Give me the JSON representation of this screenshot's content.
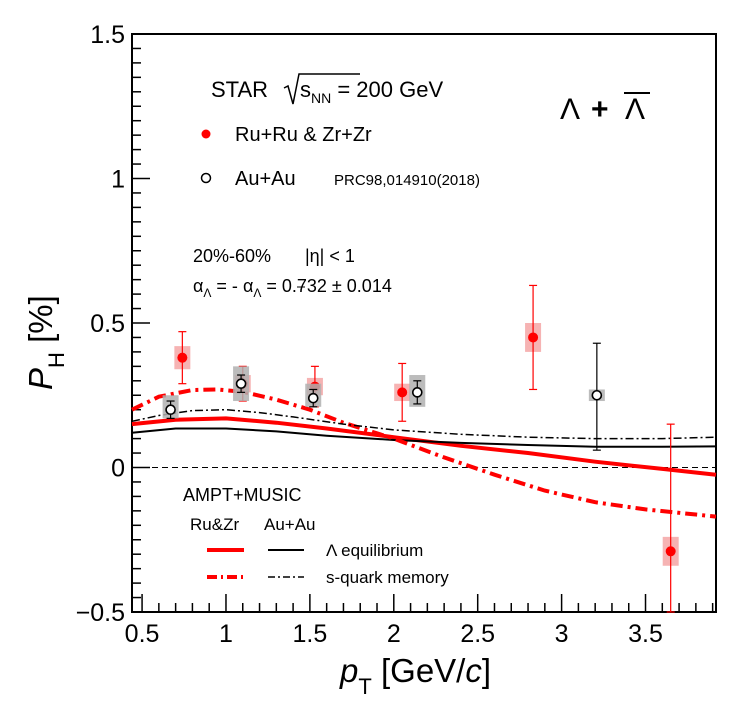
{
  "chart_data": {
    "type": "scatter",
    "title": "",
    "xlabel": {
      "main": "p",
      "sub": "T",
      "unit_open": " [GeV/",
      "unit_var": "c",
      "unit_close": "]"
    },
    "ylabel": {
      "main": "P",
      "sub": "H",
      "unit": " [%]"
    },
    "xlim": [
      0.44,
      3.92
    ],
    "ylim": [
      -0.5,
      1.5
    ],
    "x_ticks": [
      {
        "v": 0.5,
        "label": "0.5"
      },
      {
        "v": 1.0,
        "label": "1"
      },
      {
        "v": 1.5,
        "label": "1.5"
      },
      {
        "v": 2.0,
        "label": "2"
      },
      {
        "v": 2.5,
        "label": "2.5"
      },
      {
        "v": 3.0,
        "label": "3"
      },
      {
        "v": 3.5,
        "label": "3.5"
      }
    ],
    "y_ticks": [
      {
        "v": -0.5,
        "label": "−0.5"
      },
      {
        "v": 0.0,
        "label": "0"
      },
      {
        "v": 0.5,
        "label": "0.5"
      },
      {
        "v": 1.0,
        "label": "1"
      },
      {
        "v": 1.5,
        "label": "1.5"
      }
    ],
    "zero_line": true,
    "colors": {
      "red": "#ff0000",
      "black": "#000000",
      "red_sys": "#f4a6a6",
      "black_sys": "#b0b0b0"
    },
    "series": [
      {
        "name": "Ru+Ru & Zr+Zr",
        "marker": "filled-circle",
        "color": "#ff0000",
        "points": [
          {
            "x": 0.74,
            "y": 0.38,
            "stat_lo": 0.29,
            "stat_hi": 0.47,
            "sys_lo": 0.34,
            "sys_hi": 0.42
          },
          {
            "x": 1.1,
            "y": 0.29,
            "stat_lo": 0.23,
            "stat_hi": 0.35,
            "sys_lo": 0.26,
            "sys_hi": 0.32
          },
          {
            "x": 1.53,
            "y": 0.28,
            "stat_lo": 0.21,
            "stat_hi": 0.35,
            "sys_lo": 0.25,
            "sys_hi": 0.31
          },
          {
            "x": 2.05,
            "y": 0.26,
            "stat_lo": 0.16,
            "stat_hi": 0.36,
            "sys_lo": 0.23,
            "sys_hi": 0.29
          },
          {
            "x": 2.83,
            "y": 0.45,
            "stat_lo": 0.27,
            "stat_hi": 0.63,
            "sys_lo": 0.4,
            "sys_hi": 0.5
          },
          {
            "x": 3.65,
            "y": -0.29,
            "stat_lo": -0.5,
            "stat_hi": 0.15,
            "sys_lo": -0.34,
            "sys_hi": -0.24
          }
        ]
      },
      {
        "name": "Au+Au",
        "marker": "open-circle",
        "color": "#000000",
        "points": [
          {
            "x": 0.67,
            "y": 0.2,
            "stat_lo": 0.17,
            "stat_hi": 0.23,
            "sys_lo": 0.17,
            "sys_hi": 0.25
          },
          {
            "x": 1.09,
            "y": 0.29,
            "stat_lo": 0.26,
            "stat_hi": 0.32,
            "sys_lo": 0.23,
            "sys_hi": 0.35
          },
          {
            "x": 1.52,
            "y": 0.24,
            "stat_lo": 0.21,
            "stat_hi": 0.27,
            "sys_lo": 0.21,
            "sys_hi": 0.29
          },
          {
            "x": 2.14,
            "y": 0.26,
            "stat_lo": 0.22,
            "stat_hi": 0.3,
            "sys_lo": 0.21,
            "sys_hi": 0.32
          },
          {
            "x": 3.21,
            "y": 0.25,
            "stat_lo": 0.06,
            "stat_hi": 0.43,
            "sys_lo": 0.23,
            "sys_hi": 0.27
          }
        ]
      }
    ],
    "curves": [
      {
        "name": "Ru&Zr Λ equilibrium",
        "style": "solid",
        "color": "#ff0000",
        "width": 4,
        "x": [
          0.44,
          0.7,
          1.0,
          1.3,
          1.6,
          2.0,
          2.4,
          2.8,
          3.2,
          3.6,
          3.92
        ],
        "y": [
          0.15,
          0.165,
          0.17,
          0.155,
          0.135,
          0.105,
          0.075,
          0.05,
          0.02,
          -0.005,
          -0.025
        ]
      },
      {
        "name": "Au+Au Λ equilibrium",
        "style": "solid",
        "color": "#000000",
        "width": 2,
        "x": [
          0.44,
          0.7,
          1.0,
          1.3,
          1.6,
          2.0,
          2.4,
          2.8,
          3.2,
          3.6,
          3.92
        ],
        "y": [
          0.12,
          0.135,
          0.135,
          0.125,
          0.11,
          0.095,
          0.085,
          0.078,
          0.072,
          0.072,
          0.073
        ]
      },
      {
        "name": "Ru&Zr s-quark memory",
        "style": "dashdot",
        "color": "#ff0000",
        "width": 4,
        "x": [
          0.44,
          0.6,
          0.8,
          0.95,
          1.1,
          1.3,
          1.5,
          1.7,
          2.0,
          2.3,
          2.6,
          2.9,
          3.2,
          3.5,
          3.92
        ],
        "y": [
          0.2,
          0.245,
          0.268,
          0.27,
          0.262,
          0.235,
          0.2,
          0.155,
          0.1,
          0.035,
          -0.025,
          -0.08,
          -0.12,
          -0.145,
          -0.17
        ]
      },
      {
        "name": "Au+Au s-quark memory",
        "style": "dashdot",
        "color": "#000000",
        "width": 1.5,
        "x": [
          0.44,
          0.6,
          0.8,
          1.0,
          1.2,
          1.4,
          1.7,
          2.0,
          2.4,
          2.8,
          3.2,
          3.6,
          3.92
        ],
        "y": [
          0.16,
          0.18,
          0.197,
          0.2,
          0.19,
          0.175,
          0.15,
          0.13,
          0.115,
          0.105,
          0.1,
          0.1,
          0.105
        ]
      }
    ]
  },
  "annotations": {
    "star_label": "STAR",
    "sqrt_s": "s",
    "sqrt_s_sub": "NN",
    "energy": " = 200 GeV",
    "particle_lambda": "Λ",
    "particle_plus": "+",
    "particle_antilambda": "Λ",
    "legend_ru": "Ru+Ru & Zr+Zr",
    "legend_au": "Au+Au",
    "legend_au_ref": "PRC98,014910(2018)",
    "centrality": "20%-60%",
    "eta_cut": "|η| < 1",
    "alpha_a": "α",
    "alpha_a_sub": "Λ",
    "alpha_eq": " = - ",
    "alpha_b": "α",
    "alpha_b_sub": "Λ",
    "alpha_val": " = 0.732 ± 0.014",
    "model_title": "AMPT+MUSIC",
    "model_col_ru": "Ru&Zr",
    "model_col_au": "Au+Au",
    "model_equilibrium": "Λ equilibrium",
    "model_memory": "s-quark memory"
  }
}
